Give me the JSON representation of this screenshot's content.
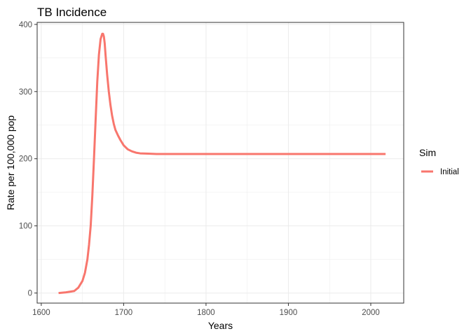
{
  "chart_data": {
    "type": "line",
    "title": "TB Incidence",
    "xlabel": "Years",
    "ylabel": "Rate per 100,000 pop",
    "xlim": [
      1595,
      2040
    ],
    "ylim": [
      -15,
      403
    ],
    "x_ticks": [
      1600,
      1700,
      1800,
      1900,
      2000
    ],
    "x_tick_labels": [
      "1600",
      "1700",
      "1800",
      "1900",
      "2000"
    ],
    "y_ticks": [
      0,
      100,
      200,
      300,
      400
    ],
    "y_tick_labels": [
      "0",
      "100",
      "200",
      "300",
      "400"
    ],
    "grid": true,
    "legend": {
      "title": "Sim",
      "position": "right"
    },
    "series": [
      {
        "name": "Initial",
        "color": "#F8766D",
        "x": [
          1621,
          1630,
          1640,
          1645,
          1650,
          1653,
          1656,
          1658,
          1660,
          1662,
          1664,
          1666,
          1668,
          1670,
          1672,
          1674,
          1675,
          1676,
          1677,
          1678,
          1680,
          1682,
          1684,
          1686,
          1688,
          1690,
          1693,
          1696,
          1700,
          1705,
          1710,
          1715,
          1720,
          1730,
          1740,
          1750,
          1800,
          1850,
          1900,
          1950,
          2000,
          2018
        ],
        "y": [
          0,
          1,
          3,
          8,
          18,
          30,
          50,
          72,
          100,
          145,
          200,
          258,
          315,
          355,
          378,
          386,
          386,
          382,
          372,
          355,
          325,
          300,
          280,
          264,
          252,
          243,
          235,
          228,
          220,
          214,
          211,
          209,
          208,
          207.5,
          207,
          207,
          207,
          207,
          207,
          207,
          207,
          207
        ]
      }
    ]
  }
}
